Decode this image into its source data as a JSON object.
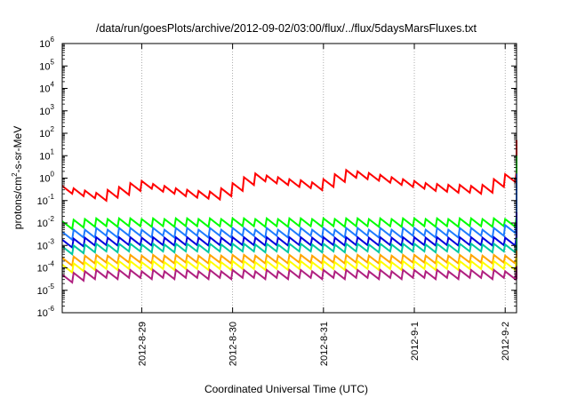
{
  "chart_data": {
    "type": "line",
    "title": "/data/run/goesPlots/archive/2012-09-02/03:00/flux/../flux/5daysMarsFluxes.txt",
    "xlabel": "Coordinated Universal Time (UTC)",
    "ylabel": "protons/cm²-s-sr-MeV",
    "ylabel_parts": {
      "pre": "protons/cm",
      "sup": "2",
      "post": "-s-sr-MeV"
    },
    "y_scale": "log",
    "ylim": [
      1e-06,
      1000000.0
    ],
    "y_ticks": [
      {
        "value": 1e-06,
        "base": "10",
        "exp": "-6"
      },
      {
        "value": 1e-05,
        "base": "10",
        "exp": "-5"
      },
      {
        "value": 0.0001,
        "base": "10",
        "exp": "-4"
      },
      {
        "value": 0.001,
        "base": "10",
        "exp": "-3"
      },
      {
        "value": 0.01,
        "base": "10",
        "exp": "-2"
      },
      {
        "value": 0.1,
        "base": "10",
        "exp": "-1"
      },
      {
        "value": 1,
        "base": "10",
        "exp": "0"
      },
      {
        "value": 10.0,
        "base": "10",
        "exp": "1"
      },
      {
        "value": 100.0,
        "base": "10",
        "exp": "2"
      },
      {
        "value": 1000.0,
        "base": "10",
        "exp": "3"
      },
      {
        "value": 10000.0,
        "base": "10",
        "exp": "4"
      },
      {
        "value": 100000.0,
        "base": "10",
        "exp": "5"
      },
      {
        "value": 1000000.0,
        "base": "10",
        "exp": "6"
      }
    ],
    "xlim": [
      "2012-08-28 03:00",
      "2012-09-02 03:00"
    ],
    "x_ticks": [
      {
        "date": "2012-08-29 00:00",
        "label": "2012-8-29"
      },
      {
        "date": "2012-08-30 00:00",
        "label": "2012-8-30"
      },
      {
        "date": "2012-08-31 00:00",
        "label": "2012-8-31"
      },
      {
        "date": "2012-09-01 00:00",
        "label": "2012-9-1"
      },
      {
        "date": "2012-09-02 00:00",
        "label": "2012-9-2"
      }
    ],
    "grid": true,
    "sample_step_hours": 3,
    "series": [
      {
        "color": "#ff0000",
        "values": [
          0.45,
          0.35,
          0.28,
          0.22,
          0.3,
          0.4,
          0.6,
          0.75,
          0.55,
          0.45,
          0.35,
          0.3,
          0.27,
          0.25,
          0.35,
          0.6,
          1.1,
          1.6,
          1.3,
          1.1,
          0.9,
          0.8,
          0.65,
          0.9,
          1.5,
          2.3,
          2.0,
          1.7,
          1.4,
          1.1,
          0.9,
          0.75,
          0.6,
          0.55,
          0.5,
          0.5,
          0.45,
          0.5,
          0.9,
          1.5,
          2.1,
          1.9,
          1.6,
          1.3,
          1.1,
          1.5,
          3.0,
          10.0,
          30.0,
          50.0,
          40.0,
          22.0
        ]
      },
      {
        "color": "#00ff00",
        "values": [
          0.012,
          0.014,
          0.015,
          0.016,
          0.015,
          0.016,
          0.016,
          0.015,
          0.016,
          0.015,
          0.016,
          0.016,
          0.015,
          0.016,
          0.015,
          0.016,
          0.016,
          0.015,
          0.016,
          0.015,
          0.016,
          0.016,
          0.015,
          0.016,
          0.015,
          0.016,
          0.016,
          0.015,
          0.016,
          0.015,
          0.016,
          0.016,
          0.015,
          0.016,
          0.015,
          0.016,
          0.016,
          0.015,
          0.016,
          0.015,
          0.02,
          0.04,
          0.08,
          0.15,
          0.35,
          0.8,
          1.6,
          3.5,
          7.0,
          10.0,
          6.0,
          3.0
        ]
      },
      {
        "color": "#1e7bff",
        "values": [
          0.004,
          0.005,
          0.005,
          0.006,
          0.005,
          0.006,
          0.006,
          0.005,
          0.006,
          0.005,
          0.006,
          0.006,
          0.005,
          0.006,
          0.005,
          0.006,
          0.006,
          0.005,
          0.006,
          0.005,
          0.006,
          0.006,
          0.005,
          0.006,
          0.005,
          0.006,
          0.006,
          0.005,
          0.006,
          0.005,
          0.006,
          0.006,
          0.005,
          0.006,
          0.005,
          0.006,
          0.006,
          0.005,
          0.006,
          0.008,
          0.01,
          0.015,
          0.02,
          0.04,
          0.06,
          0.1,
          0.2,
          0.4,
          1.1,
          1.6,
          1.0,
          0.5
        ]
      },
      {
        "color": "#0000dd",
        "values": [
          0.0018,
          0.002,
          0.0022,
          0.0023,
          0.0022,
          0.0023,
          0.0023,
          0.0022,
          0.0023,
          0.0022,
          0.0023,
          0.0023,
          0.0022,
          0.0023,
          0.0022,
          0.0023,
          0.0023,
          0.0022,
          0.0023,
          0.0022,
          0.0023,
          0.0023,
          0.0022,
          0.0023,
          0.0022,
          0.0023,
          0.0023,
          0.0022,
          0.0023,
          0.0022,
          0.0023,
          0.0023,
          0.0022,
          0.0023,
          0.0022,
          0.0023,
          0.0023,
          0.0022,
          0.0023,
          0.0022,
          0.003,
          0.004,
          0.005,
          0.006,
          0.008,
          0.012,
          0.02,
          0.03,
          0.03,
          0.025,
          0.018,
          0.012
        ]
      },
      {
        "color": "#00c8a0",
        "values": [
          0.0009,
          0.001,
          0.0011,
          0.0012,
          0.0011,
          0.0012,
          0.0012,
          0.0011,
          0.0012,
          0.0011,
          0.0012,
          0.0012,
          0.0011,
          0.0012,
          0.0011,
          0.0012,
          0.0012,
          0.0011,
          0.0012,
          0.0011,
          0.0012,
          0.0012,
          0.0011,
          0.0012,
          0.0011,
          0.0012,
          0.0012,
          0.0011,
          0.0012,
          0.0011,
          0.0012,
          0.0012,
          0.0011,
          0.0012,
          0.0011,
          0.0012,
          0.0012,
          0.0011,
          0.0012,
          0.0011,
          0.0012,
          0.0012,
          0.0013,
          0.0014,
          0.0015,
          0.0017,
          0.0019,
          0.0021,
          0.0022,
          0.0018,
          0.0014,
          0.001
        ]
      },
      {
        "color": "#ffa500",
        "values": [
          0.00028,
          0.00032,
          0.00035,
          0.00038,
          0.00035,
          0.00038,
          0.00038,
          0.00035,
          0.00038,
          0.00035,
          0.00038,
          0.00038,
          0.00035,
          0.00038,
          0.00035,
          0.00038,
          0.00038,
          0.00035,
          0.00038,
          0.00035,
          0.00038,
          0.00038,
          0.00035,
          0.00038,
          0.00035,
          0.00038,
          0.00038,
          0.00035,
          0.00038,
          0.00035,
          0.00038,
          0.00038,
          0.00035,
          0.00038,
          0.00035,
          0.00038,
          0.00038,
          0.00035,
          0.00038,
          0.00035,
          0.00038,
          0.00038,
          0.0004,
          0.00042,
          0.00045,
          0.0005,
          0.00055,
          0.0006,
          0.0006,
          0.00055,
          0.0005,
          0.0004
        ]
      },
      {
        "color": "#ffff00",
        "values": [
          0.00014,
          0.00016,
          0.00018,
          0.0002,
          0.00018,
          0.0002,
          0.0002,
          0.00018,
          0.0002,
          0.00018,
          0.0002,
          0.0002,
          0.00018,
          0.0002,
          0.00018,
          0.0002,
          0.0002,
          0.00018,
          0.0002,
          0.00018,
          0.0002,
          0.0002,
          0.00018,
          0.0002,
          0.00018,
          0.0002,
          0.0002,
          0.00018,
          0.0002,
          0.00018,
          0.0002,
          0.0002,
          0.00018,
          0.0002,
          0.00018,
          0.0002,
          0.0002,
          0.00018,
          0.0002,
          0.00018,
          0.0002,
          0.0002,
          0.00021,
          0.00022,
          0.00024,
          0.00026,
          0.00028,
          0.0003,
          0.0003,
          0.00028,
          0.00025,
          0.0002
        ]
      },
      {
        "color": "#b02080",
        "values": [
          5e-05,
          6e-05,
          7e-05,
          8e-05,
          7e-05,
          8e-05,
          8e-05,
          7e-05,
          8e-05,
          7e-05,
          8e-05,
          8e-05,
          7e-05,
          8e-05,
          7e-05,
          8e-05,
          8e-05,
          7e-05,
          8e-05,
          7e-05,
          8e-05,
          8e-05,
          7e-05,
          8e-05,
          7e-05,
          8e-05,
          8e-05,
          7e-05,
          8e-05,
          7e-05,
          8e-05,
          8e-05,
          7e-05,
          8e-05,
          7e-05,
          8e-05,
          8e-05,
          7e-05,
          8e-05,
          7e-05,
          8e-05,
          8e-05,
          8e-05,
          9e-05,
          0.0001,
          0.00011,
          0.00012,
          0.00012,
          0.00011,
          0.0001,
          9e-05,
          7e-05
        ]
      }
    ]
  }
}
